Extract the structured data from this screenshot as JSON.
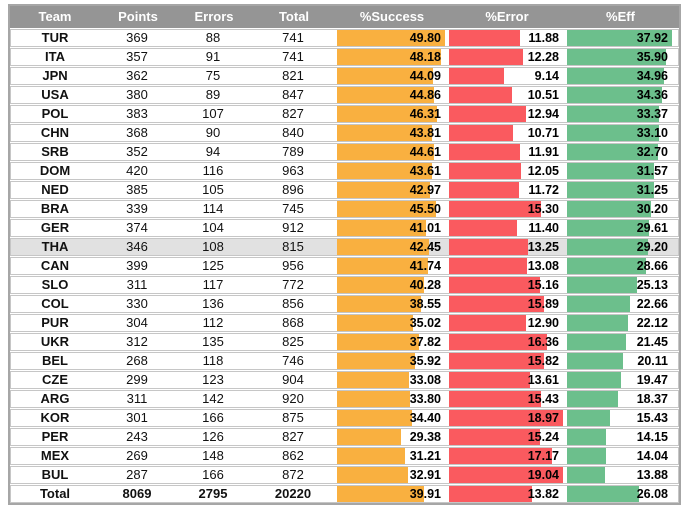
{
  "colors": {
    "success_bar": "#F9B040",
    "error_bar": "#FA5A5F",
    "eff_bar": "#6CBF8C",
    "header_bg": "#959595",
    "highlight_row": "#E1E1E1",
    "row_border": "#C6C6C6",
    "outer_border": "#A6A6A6"
  },
  "table": {
    "columns": [
      "Team",
      "Points",
      "Errors",
      "Total",
      "%Success",
      "%Error",
      "%Eff"
    ],
    "bar_max": {
      "success": 49.8,
      "error": 19.04,
      "eff": 37.92
    },
    "rows": [
      {
        "team": "TUR",
        "points": "369",
        "errors": "88",
        "total": "741",
        "success": "49.80",
        "error": "11.88",
        "eff": "37.92"
      },
      {
        "team": "ITA",
        "points": "357",
        "errors": "91",
        "total": "741",
        "success": "48.18",
        "error": "12.28",
        "eff": "35.90"
      },
      {
        "team": "JPN",
        "points": "362",
        "errors": "75",
        "total": "821",
        "success": "44.09",
        "error": "9.14",
        "eff": "34.96"
      },
      {
        "team": "USA",
        "points": "380",
        "errors": "89",
        "total": "847",
        "success": "44.86",
        "error": "10.51",
        "eff": "34.36"
      },
      {
        "team": "POL",
        "points": "383",
        "errors": "107",
        "total": "827",
        "success": "46.31",
        "error": "12.94",
        "eff": "33.37"
      },
      {
        "team": "CHN",
        "points": "368",
        "errors": "90",
        "total": "840",
        "success": "43.81",
        "error": "10.71",
        "eff": "33.10"
      },
      {
        "team": "SRB",
        "points": "352",
        "errors": "94",
        "total": "789",
        "success": "44.61",
        "error": "11.91",
        "eff": "32.70"
      },
      {
        "team": "DOM",
        "points": "420",
        "errors": "116",
        "total": "963",
        "success": "43.61",
        "error": "12.05",
        "eff": "31.57"
      },
      {
        "team": "NED",
        "points": "385",
        "errors": "105",
        "total": "896",
        "success": "42.97",
        "error": "11.72",
        "eff": "31.25"
      },
      {
        "team": "BRA",
        "points": "339",
        "errors": "114",
        "total": "745",
        "success": "45.50",
        "error": "15.30",
        "eff": "30.20"
      },
      {
        "team": "GER",
        "points": "374",
        "errors": "104",
        "total": "912",
        "success": "41.01",
        "error": "11.40",
        "eff": "29.61"
      },
      {
        "team": "THA",
        "points": "346",
        "errors": "108",
        "total": "815",
        "success": "42.45",
        "error": "13.25",
        "eff": "29.20",
        "highlight": true
      },
      {
        "team": "CAN",
        "points": "399",
        "errors": "125",
        "total": "956",
        "success": "41.74",
        "error": "13.08",
        "eff": "28.66"
      },
      {
        "team": "SLO",
        "points": "311",
        "errors": "117",
        "total": "772",
        "success": "40.28",
        "error": "15.16",
        "eff": "25.13"
      },
      {
        "team": "COL",
        "points": "330",
        "errors": "136",
        "total": "856",
        "success": "38.55",
        "error": "15.89",
        "eff": "22.66"
      },
      {
        "team": "PUR",
        "points": "304",
        "errors": "112",
        "total": "868",
        "success": "35.02",
        "error": "12.90",
        "eff": "22.12"
      },
      {
        "team": "UKR",
        "points": "312",
        "errors": "135",
        "total": "825",
        "success": "37.82",
        "error": "16.36",
        "eff": "21.45"
      },
      {
        "team": "BEL",
        "points": "268",
        "errors": "118",
        "total": "746",
        "success": "35.92",
        "error": "15.82",
        "eff": "20.11"
      },
      {
        "team": "CZE",
        "points": "299",
        "errors": "123",
        "total": "904",
        "success": "33.08",
        "error": "13.61",
        "eff": "19.47"
      },
      {
        "team": "ARG",
        "points": "311",
        "errors": "142",
        "total": "920",
        "success": "33.80",
        "error": "15.43",
        "eff": "18.37"
      },
      {
        "team": "KOR",
        "points": "301",
        "errors": "166",
        "total": "875",
        "success": "34.40",
        "error": "18.97",
        "eff": "15.43"
      },
      {
        "team": "PER",
        "points": "243",
        "errors": "126",
        "total": "827",
        "success": "29.38",
        "error": "15.24",
        "eff": "14.15"
      },
      {
        "team": "MEX",
        "points": "269",
        "errors": "148",
        "total": "862",
        "success": "31.21",
        "error": "17.17",
        "eff": "14.04"
      },
      {
        "team": "BUL",
        "points": "287",
        "errors": "166",
        "total": "872",
        "success": "32.91",
        "error": "19.04",
        "eff": "13.88"
      },
      {
        "team": "Total",
        "points": "8069",
        "errors": "2795",
        "total": "20220",
        "success": "39.91",
        "error": "13.82",
        "eff": "26.08",
        "is_total": true
      }
    ]
  }
}
